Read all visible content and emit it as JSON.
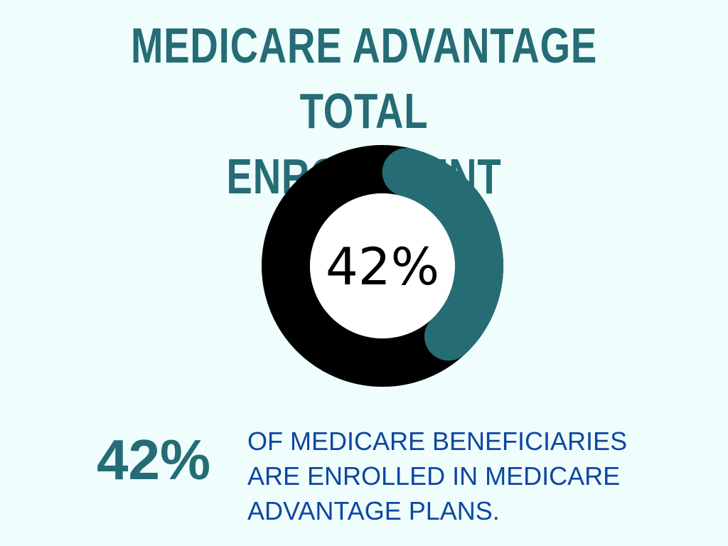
{
  "title": "MEDICARE ADVANTAGE TOTAL\nENROLLMENT",
  "chart_data": {
    "type": "pie",
    "style": "donut",
    "center_label": "42%",
    "slices": [
      {
        "value": 42,
        "color": "#256c75"
      },
      {
        "value": 58,
        "color": "#000000"
      }
    ]
  },
  "stat": {
    "value": "42%",
    "description": " OF MEDICARE BENEFICIARIES\nARE ENROLLED IN MEDICARE\nADVANTAGE PLANS."
  },
  "colors": {
    "background": "#effdfd",
    "accent": "#256c75",
    "text_blue": "#0d47a1"
  }
}
